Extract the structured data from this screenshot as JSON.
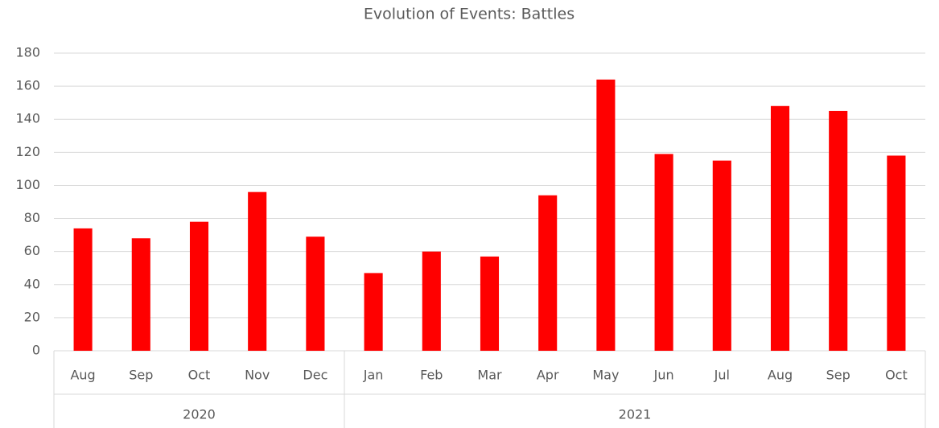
{
  "chart_data": {
    "type": "bar",
    "title": "Evolution of Events: Battles",
    "groups": [
      {
        "name": "2020",
        "categories": [
          "Aug",
          "Sep",
          "Oct",
          "Nov",
          "Dec"
        ],
        "values": [
          74,
          68,
          78,
          96,
          69
        ]
      },
      {
        "name": "2021",
        "categories": [
          "Jan",
          "Feb",
          "Mar",
          "Apr",
          "May",
          "Jun",
          "Jul",
          "Aug",
          "Sep",
          "Oct"
        ],
        "values": [
          47,
          60,
          57,
          94,
          164,
          119,
          115,
          148,
          145,
          118
        ]
      }
    ],
    "color": "#ff0000",
    "ylim": [
      0,
      180
    ],
    "yticks": [
      0,
      20,
      40,
      60,
      80,
      100,
      120,
      140,
      160,
      180
    ],
    "grid": true
  }
}
